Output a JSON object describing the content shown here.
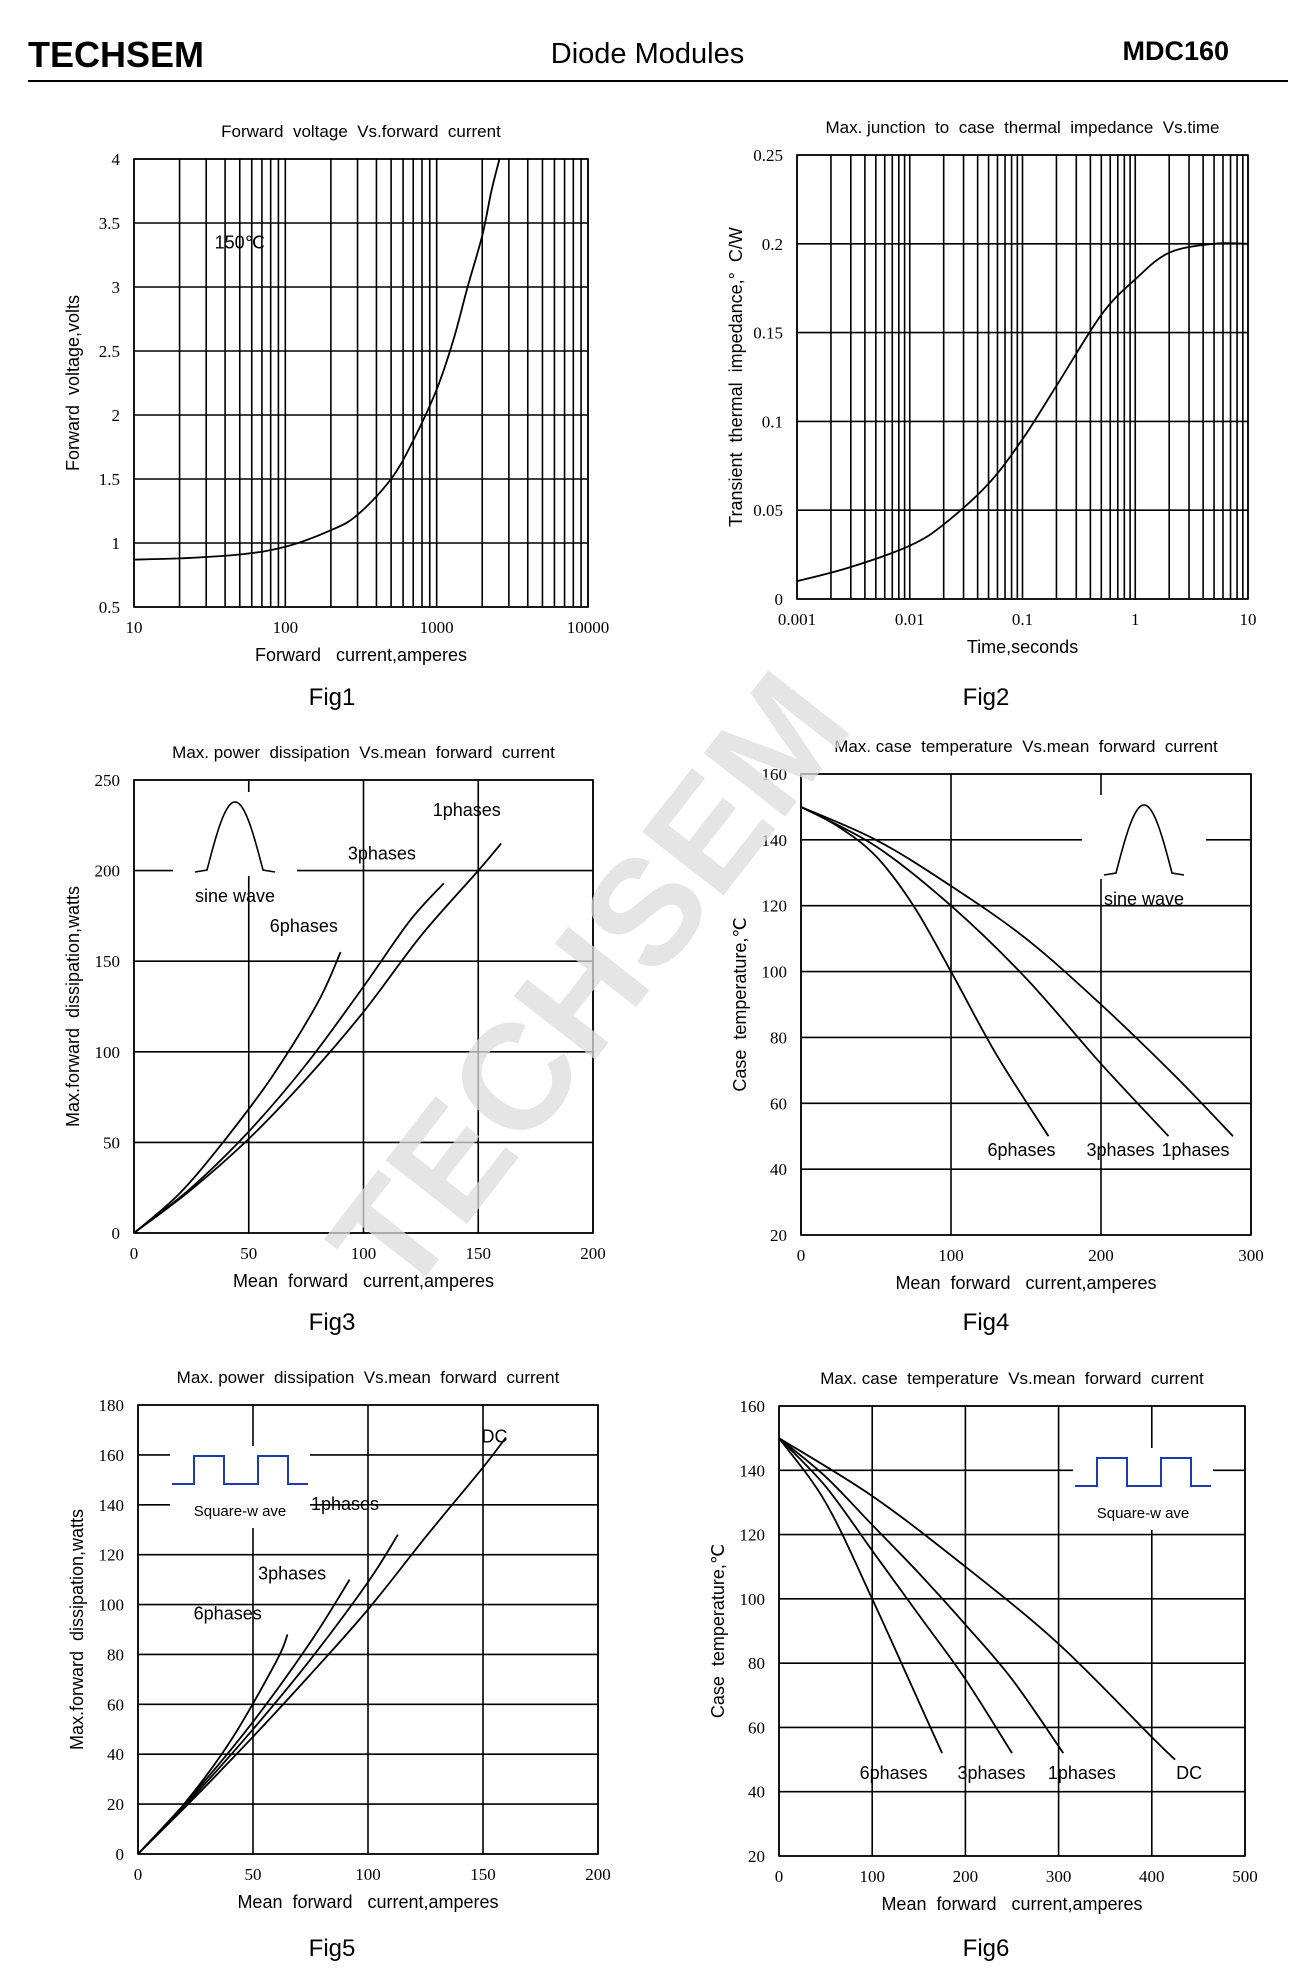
{
  "header": {
    "brand": "TECHSEM",
    "title": "Diode Modules",
    "model": "MDC160"
  },
  "watermark": "TECHSEM",
  "colors": {
    "ink": "#000000",
    "wave": "#1e3aa8",
    "watermark": "#dcdcdc"
  },
  "chart_data": [
    {
      "id": "fig1",
      "type": "line",
      "fig_label": "Fig1",
      "title": "Forward  voltage  Vs.forward  current",
      "xlabel": "Forward   current,amperes",
      "ylabel": "Forward  voltage,volts",
      "xscale": "log",
      "xlim": [
        10,
        10000
      ],
      "ylim": [
        0.5,
        4
      ],
      "x_ticks": [
        10,
        100,
        1000,
        10000
      ],
      "x_tick_labels": [
        "10",
        "100",
        "1000",
        "10000"
      ],
      "y_ticks": [
        0.5,
        1,
        1.5,
        2,
        2.5,
        3,
        3.5,
        4
      ],
      "y_tick_labels": [
        "0.5",
        "1",
        "1.5",
        "2",
        "2.5",
        "3",
        "3.5",
        "4"
      ],
      "annotations": [
        {
          "text": "150℃",
          "x": 50,
          "y": 3.3
        }
      ],
      "series": [
        {
          "name": "150℃",
          "x": [
            10,
            20,
            50,
            100,
            200,
            300,
            500,
            700,
            1000,
            1300,
            1600,
            2000,
            2300,
            2600
          ],
          "y": [
            0.87,
            0.88,
            0.91,
            0.97,
            1.1,
            1.22,
            1.5,
            1.8,
            2.2,
            2.6,
            3.0,
            3.4,
            3.75,
            4.0
          ]
        }
      ]
    },
    {
      "id": "fig2",
      "type": "line",
      "fig_label": "Fig2",
      "title": "Max. junction  to  case  thermal  impedance  Vs.time",
      "xlabel": "Time,seconds",
      "ylabel": "Transient  thermal  impedance,°  C/W",
      "xscale": "log",
      "xlim": [
        0.001,
        10
      ],
      "ylim": [
        0,
        0.25
      ],
      "x_ticks": [
        0.001,
        0.01,
        0.1,
        1,
        10
      ],
      "x_tick_labels": [
        "0.001",
        "0.01",
        "0.1",
        "1",
        "10"
      ],
      "y_ticks": [
        0,
        0.05,
        0.1,
        0.15,
        0.2,
        0.25
      ],
      "y_tick_labels": [
        "0",
        "0.05",
        "0.1",
        "0.15",
        "0.2",
        "0.25"
      ],
      "annotations": [],
      "series": [
        {
          "name": "Zth",
          "x": [
            0.001,
            0.003,
            0.01,
            0.02,
            0.05,
            0.1,
            0.2,
            0.5,
            1,
            2,
            5,
            10
          ],
          "y": [
            0.01,
            0.018,
            0.03,
            0.042,
            0.065,
            0.09,
            0.12,
            0.16,
            0.18,
            0.195,
            0.2,
            0.2
          ]
        }
      ]
    },
    {
      "id": "fig3",
      "type": "line",
      "fig_label": "Fig3",
      "title": "Max. power  dissipation  Vs.mean  forward  current",
      "xlabel": "Mean  forward   current,amperes",
      "ylabel": "Max.forward  dissipation,watts",
      "xscale": "linear",
      "xlim": [
        0,
        200
      ],
      "ylim": [
        0,
        250
      ],
      "x_ticks": [
        0,
        50,
        100,
        150,
        200
      ],
      "x_tick_labels": [
        "0",
        "50",
        "100",
        "150",
        "200"
      ],
      "y_ticks": [
        0,
        50,
        100,
        150,
        200,
        250
      ],
      "y_tick_labels": [
        "0",
        "50",
        "100",
        "150",
        "200",
        "250"
      ],
      "inset": {
        "kind": "sine",
        "text": "sine wave"
      },
      "annotations": [
        {
          "text": "1phases",
          "x": 145,
          "y": 230
        },
        {
          "text": "3phases",
          "x": 108,
          "y": 206
        },
        {
          "text": "6phases",
          "x": 74,
          "y": 166
        }
      ],
      "series": [
        {
          "name": "1phases",
          "x": [
            0,
            25,
            50,
            75,
            100,
            125,
            150,
            160
          ],
          "y": [
            0,
            24,
            52,
            85,
            122,
            164,
            200,
            215
          ]
        },
        {
          "name": "3phases",
          "x": [
            0,
            25,
            50,
            75,
            100,
            120,
            135
          ],
          "y": [
            0,
            25,
            56,
            93,
            136,
            172,
            193
          ]
        },
        {
          "name": "6phases",
          "x": [
            0,
            20,
            40,
            60,
            80,
            90
          ],
          "y": [
            0,
            22,
            52,
            86,
            127,
            155
          ]
        }
      ]
    },
    {
      "id": "fig4",
      "type": "line",
      "fig_label": "Fig4",
      "title": "Max. case  temperature  Vs.mean  forward  current",
      "xlabel": "Mean  forward   current,amperes",
      "ylabel": "Case  temperature,℃",
      "xscale": "linear",
      "xlim": [
        0,
        300
      ],
      "ylim": [
        20,
        160
      ],
      "x_ticks": [
        0,
        100,
        200,
        300
      ],
      "x_tick_labels": [
        "0",
        "100",
        "200",
        "300"
      ],
      "y_ticks": [
        20,
        40,
        60,
        80,
        100,
        120,
        140,
        160
      ],
      "y_tick_labels": [
        "20",
        "40",
        "60",
        "80",
        "100",
        "120",
        "140",
        "160"
      ],
      "inset": {
        "kind": "sine",
        "text": "sine wave"
      },
      "annotations": [
        {
          "text": "6phases",
          "x": 147,
          "y": 44
        },
        {
          "text": "3phases",
          "x": 213,
          "y": 44
        },
        {
          "text": "1phases",
          "x": 263,
          "y": 44
        }
      ],
      "series": [
        {
          "name": "6phases",
          "x": [
            0,
            25,
            50,
            75,
            100,
            130,
            165
          ],
          "y": [
            150,
            144,
            135,
            120,
            100,
            75,
            50
          ]
        },
        {
          "name": "3phases",
          "x": [
            0,
            50,
            100,
            150,
            200,
            245
          ],
          "y": [
            150,
            138,
            120,
            98,
            72,
            50
          ]
        },
        {
          "name": "1phases",
          "x": [
            0,
            50,
            100,
            150,
            200,
            250,
            288
          ],
          "y": [
            150,
            140,
            126,
            110,
            90,
            68,
            50
          ]
        }
      ]
    },
    {
      "id": "fig5",
      "type": "line",
      "fig_label": "Fig5",
      "title": "Max. power  dissipation  Vs.mean  forward  current",
      "xlabel": "Mean  forward   current,amperes",
      "ylabel": "Max.forward  dissipation,watts",
      "xscale": "linear",
      "xlim": [
        0,
        200
      ],
      "ylim": [
        0,
        180
      ],
      "x_ticks": [
        0,
        50,
        100,
        150,
        200
      ],
      "x_tick_labels": [
        "0",
        "50",
        "100",
        "150",
        "200"
      ],
      "y_ticks": [
        0,
        20,
        40,
        60,
        80,
        100,
        120,
        140,
        160,
        180
      ],
      "y_tick_labels": [
        "0",
        "20",
        "40",
        "60",
        "80",
        "100",
        "120",
        "140",
        "160",
        "180"
      ],
      "inset": {
        "kind": "square",
        "text": "Square-w ave"
      },
      "annotations": [
        {
          "text": "DC",
          "x": 155,
          "y": 165
        },
        {
          "text": "1phases",
          "x": 90,
          "y": 138
        },
        {
          "text": "3phases",
          "x": 67,
          "y": 110
        },
        {
          "text": "6phases",
          "x": 39,
          "y": 94
        }
      ],
      "series": [
        {
          "name": "DC",
          "x": [
            0,
            25,
            50,
            75,
            100,
            125,
            150,
            160
          ],
          "y": [
            0,
            23,
            47,
            72,
            98,
            127,
            155,
            167
          ]
        },
        {
          "name": "1phases",
          "x": [
            0,
            25,
            50,
            75,
            100,
            113
          ],
          "y": [
            0,
            24,
            50,
            78,
            109,
            128
          ]
        },
        {
          "name": "3phases",
          "x": [
            0,
            25,
            50,
            75,
            92
          ],
          "y": [
            0,
            25,
            53,
            85,
            110
          ]
        },
        {
          "name": "6phases",
          "x": [
            0,
            20,
            40,
            60,
            65
          ],
          "y": [
            0,
            20,
            45,
            77,
            88
          ]
        }
      ]
    },
    {
      "id": "fig6",
      "type": "line",
      "fig_label": "Fig6",
      "title": "Max. case  temperature  Vs.mean  forward  current",
      "xlabel": "Mean  forward   current,amperes",
      "ylabel": "Case  temperature,℃",
      "xscale": "linear",
      "xlim": [
        0,
        500
      ],
      "ylim": [
        20,
        160
      ],
      "x_ticks": [
        0,
        100,
        200,
        300,
        400,
        500
      ],
      "x_tick_labels": [
        "0",
        "100",
        "200",
        "300",
        "400",
        "500"
      ],
      "y_ticks": [
        20,
        40,
        60,
        80,
        100,
        120,
        140,
        160
      ],
      "y_tick_labels": [
        "20",
        "40",
        "60",
        "80",
        "100",
        "120",
        "140",
        "160"
      ],
      "inset": {
        "kind": "square",
        "text": "Square-w ave"
      },
      "annotations": [
        {
          "text": "6phases",
          "x": 123,
          "y": 44
        },
        {
          "text": "3phases",
          "x": 228,
          "y": 44
        },
        {
          "text": "1phases",
          "x": 325,
          "y": 44
        },
        {
          "text": "DC",
          "x": 440,
          "y": 44
        }
      ],
      "series": [
        {
          "name": "6phases",
          "x": [
            0,
            50,
            100,
            150,
            175
          ],
          "y": [
            150,
            130,
            100,
            68,
            52
          ]
        },
        {
          "name": "3phases",
          "x": [
            0,
            50,
            100,
            150,
            200,
            250
          ],
          "y": [
            150,
            135,
            115,
            95,
            75,
            52
          ]
        },
        {
          "name": "1phases",
          "x": [
            0,
            50,
            100,
            150,
            200,
            250,
            305
          ],
          "y": [
            150,
            138,
            123,
            108,
            92,
            75,
            52
          ]
        },
        {
          "name": "DC",
          "x": [
            0,
            100,
            200,
            300,
            400,
            425
          ],
          "y": [
            150,
            132,
            110,
            86,
            57,
            50
          ]
        }
      ]
    }
  ]
}
